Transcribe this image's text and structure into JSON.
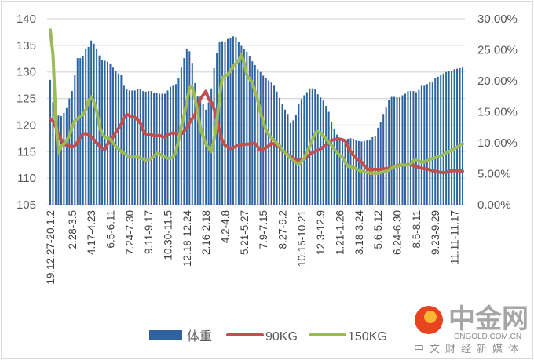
{
  "chart_data": {
    "type": "bar+line",
    "title": "",
    "left_axis": {
      "range": [
        105,
        140
      ],
      "ticks": [
        105,
        110,
        115,
        120,
        125,
        130,
        135,
        140
      ]
    },
    "right_axis": {
      "range": [
        0,
        0.3
      ],
      "ticks": [
        "0.00%",
        "5.00%",
        "10.00%",
        "15.00%",
        "20.00%",
        "25.00%",
        "30.00%"
      ]
    },
    "grid": true,
    "legend_position": "bottom",
    "x_tick_labels": [
      "19.12.27-20.1.2",
      "2.28-3.5",
      "4.17-4.23",
      "6.5-6.11",
      "7.24-7.30",
      "9.11-9.17",
      "10.30-11.5",
      "12.18-12.24",
      "2.16-2.18",
      "4.2-4.8",
      "5.21-5.27",
      "7.9-7.15",
      "8.27-9.2",
      "10.15-10.21",
      "12.3-12.9",
      "1.21-1.26",
      "3.18-3.24",
      "5.6-5.12",
      "6.24-6.30",
      "8.5-8.11",
      "9.23-9.29",
      "11.11-11.17"
    ],
    "series": [
      {
        "name": "体重",
        "type": "bar",
        "axis": "left",
        "color": "#2f63a0",
        "values": [
          128.5,
          124.3,
          119.5,
          121.8,
          121.7,
          122.3,
          123.2,
          125,
          126.4,
          129.5,
          132.6,
          132.6,
          133,
          134.3,
          134.7,
          135.9,
          135.3,
          134.4,
          133.1,
          132.3,
          132.1,
          131.9,
          131.6,
          130.8,
          130.2,
          129.7,
          129.4,
          127.4,
          126.8,
          126.5,
          126.5,
          126.5,
          126.7,
          126.7,
          126.4,
          126.3,
          126.4,
          126.4,
          126.1,
          126,
          125.9,
          125.9,
          125.9,
          126.5,
          127.2,
          127.4,
          127.7,
          128.8,
          130.8,
          132.6,
          134.4,
          133.9,
          131.7,
          127.9,
          125.4,
          124.5,
          123.9,
          122.9,
          124.3,
          126.9,
          130.7,
          133.5,
          135.7,
          135.8,
          135.7,
          136.2,
          136.4,
          136.7,
          136.6,
          135.7,
          134.9,
          134.3,
          133.8,
          133,
          132,
          131.3,
          130.5,
          130,
          129.3,
          128.8,
          128.4,
          128,
          127.4,
          126.3,
          125.1,
          123.9,
          122.9,
          122.1,
          120.4,
          120.9,
          121.9,
          123.9,
          124.9,
          125.6,
          126.2,
          126.9,
          126.9,
          126.8,
          125.8,
          125.2,
          124.6,
          123.6,
          122.5,
          120.6,
          119.3,
          118.2,
          117.5,
          117.1,
          116.7,
          117.4,
          117.5,
          117.4,
          117.1,
          117,
          116.9,
          117,
          117.1,
          117.2,
          117.7,
          118,
          119.5,
          120.6,
          122.1,
          123.3,
          124.7,
          125.3,
          125.3,
          125.2,
          125.2,
          125.6,
          125.9,
          126.4,
          126.4,
          126.4,
          126.2,
          126.6,
          127.4,
          127.4,
          127.7,
          128.1,
          128.2,
          128.8,
          129.1,
          129.4,
          129.7,
          130,
          130.2,
          130.2,
          130.5,
          130.6,
          130.7,
          130.8
        ]
      },
      {
        "name": "90KG",
        "type": "line",
        "axis": "right",
        "unit": "%",
        "color": "#c0504d",
        "values": [
          13.9,
          13.5,
          12.6,
          11.5,
          10.5,
          9.8,
          9.6,
          9.5,
          9.3,
          9.5,
          10.1,
          10.8,
          11.4,
          11.5,
          11.3,
          10.9,
          10.5,
          10.0,
          9.5,
          9.1,
          8.9,
          9.8,
          10.6,
          10.9,
          11.7,
          12.3,
          13.0,
          14.0,
          14.6,
          14.4,
          14.2,
          14.1,
          13.7,
          13.2,
          12.0,
          11.4,
          11.3,
          11.3,
          11.1,
          11.1,
          11.2,
          11.0,
          10.9,
          11.3,
          11.5,
          11.6,
          11.5,
          11.4,
          11.4,
          11.9,
          12.4,
          13.2,
          13.9,
          14.6,
          15.8,
          17.1,
          17.7,
          18.3,
          17.0,
          16.6,
          15.5,
          13.7,
          12.0,
          10.3,
          9.6,
          9.3,
          9.0,
          9.2,
          9.4,
          9.6,
          9.7,
          9.7,
          9.8,
          9.8,
          9.9,
          9.9,
          9.3,
          8.8,
          9.0,
          9.2,
          9.5,
          9.9,
          9.8,
          9.5,
          9.3,
          8.8,
          8.4,
          8.1,
          7.8,
          7.5,
          7.3,
          7.1,
          7.3,
          7.4,
          7.7,
          8.1,
          8.4,
          8.6,
          8.8,
          9.0,
          9.3,
          9.6,
          10.0,
          10.4,
          10.5,
          10.6,
          10.6,
          10.5,
          10.3,
          9.4,
          8.6,
          8.0,
          7.5,
          7.2,
          6.9,
          6.3,
          5.8,
          5.7,
          5.7,
          5.7,
          5.7,
          5.7,
          5.8,
          5.8,
          5.9,
          6.0,
          6.1,
          6.3,
          6.4,
          6.4,
          6.4,
          6.5,
          6.5,
          6.3,
          6.2,
          6.0,
          5.9,
          5.8,
          5.8,
          5.6,
          5.5,
          5.4,
          5.3,
          5.2,
          5.2,
          5.2,
          5.4,
          5.5,
          5.5,
          5.5,
          5.5,
          5.4
        ]
      },
      {
        "name": "150KG",
        "type": "line",
        "axis": "right",
        "unit": "%",
        "color": "#9bbb59",
        "values": [
          28.2,
          24.2,
          14.0,
          8.2,
          9.5,
          9.8,
          10.4,
          11.1,
          12.5,
          13.6,
          13.9,
          14.2,
          14.5,
          15.3,
          16.7,
          17.4,
          16.6,
          15.1,
          12.7,
          11.4,
          10.9,
          10.8,
          10.5,
          10.0,
          9.4,
          9.0,
          8.6,
          8.3,
          8.0,
          7.7,
          7.7,
          7.7,
          7.7,
          7.5,
          7.4,
          7.2,
          7.3,
          7.5,
          7.8,
          8.3,
          8.2,
          7.9,
          7.7,
          7.5,
          7.5,
          7.7,
          8.6,
          10.4,
          12.6,
          14.4,
          16.6,
          18.9,
          19.0,
          17.2,
          14.8,
          12.4,
          11.0,
          9.8,
          9.0,
          8.6,
          10.5,
          13.5,
          17.4,
          20.5,
          20.8,
          21.0,
          21.6,
          22.3,
          22.8,
          23.3,
          24.2,
          22.9,
          20.9,
          20.3,
          19.7,
          18.2,
          16.8,
          15.0,
          13.4,
          12.1,
          11.3,
          10.8,
          10.4,
          9.9,
          9.5,
          8.9,
          8.4,
          8.0,
          7.5,
          7.1,
          6.8,
          6.5,
          7.0,
          7.5,
          8.5,
          9.4,
          10.5,
          11.6,
          11.8,
          11.6,
          11.1,
          10.6,
          10.1,
          9.6,
          9.0,
          8.4,
          8.0,
          7.7,
          6.9,
          6.2,
          6.1,
          6.0,
          5.8,
          5.6,
          5.4,
          5.3,
          5.2,
          5.1,
          5.1,
          5.1,
          5.1,
          5.2,
          5.3,
          5.4,
          5.6,
          5.9,
          6.1,
          6.2,
          6.3,
          6.4,
          6.4,
          6.4,
          6.6,
          7.1,
          7.2,
          7.0,
          6.9,
          6.9,
          7.1,
          7.3,
          7.5,
          7.6,
          7.7,
          7.9,
          8.1,
          8.4,
          8.6,
          8.8,
          9.0,
          9.3,
          9.6,
          9.8
        ]
      }
    ]
  },
  "legend": {
    "items": [
      "体重",
      "90KG",
      "150KG"
    ]
  },
  "logo": {
    "name": "中金网",
    "domain": "CNGOLD.COM.CN",
    "slogan": "中文财经新媒体"
  }
}
